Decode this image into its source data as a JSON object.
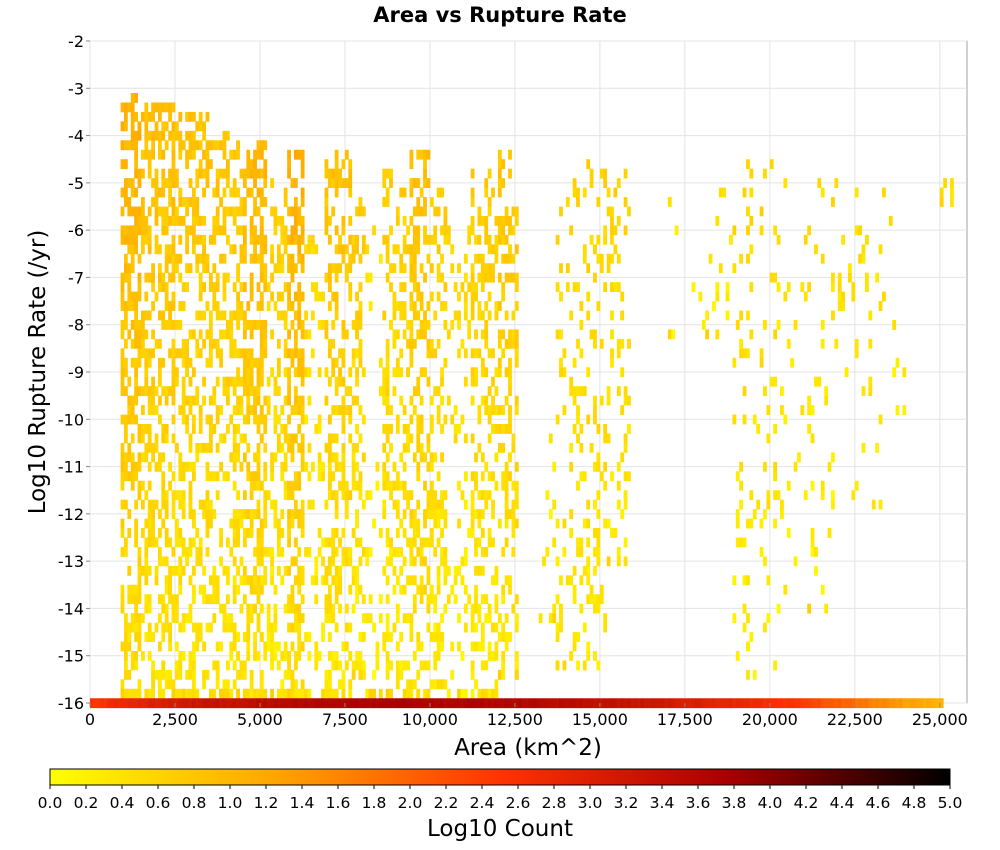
{
  "chart_data": {
    "type": "heatmap",
    "title": "Area vs Rupture Rate",
    "xlabel": "Area (km^2)",
    "ylabel": "Log10 Rupture Rate (/yr)",
    "xlim": [
      0,
      25800
    ],
    "ylim": [
      -16,
      -2
    ],
    "x_ticks": [
      0,
      2500,
      5000,
      7500,
      10000,
      12500,
      15000,
      17500,
      20000,
      22500,
      25000
    ],
    "x_tick_labels": [
      "0",
      "2,500",
      "5,000",
      "7,500",
      "10,000",
      "12,500",
      "15,000",
      "17,500",
      "20,000",
      "22,500",
      "25,000"
    ],
    "y_ticks": [
      -2,
      -3,
      -4,
      -5,
      -6,
      -7,
      -8,
      -9,
      -10,
      -11,
      -12,
      -13,
      -14,
      -15,
      -16
    ],
    "y_tick_labels": [
      "-2",
      "-3",
      "-4",
      "-5",
      "-6",
      "-7",
      "-8",
      "-9",
      "-10",
      "-11",
      "-12",
      "-13",
      "-14",
      "-15",
      "-16"
    ],
    "grid": true,
    "colorbar": {
      "label": "Log10 Count",
      "range": [
        0,
        5
      ],
      "ticks": [
        "0.0",
        "0.2",
        "0.4",
        "0.6",
        "0.8",
        "1.0",
        "1.2",
        "1.4",
        "1.6",
        "1.8",
        "2.0",
        "2.2",
        "2.4",
        "2.6",
        "2.8",
        "3.0",
        "3.2",
        "3.4",
        "3.6",
        "3.8",
        "4.0",
        "4.2",
        "4.4",
        "4.6",
        "4.8",
        "5.0"
      ],
      "colormap": [
        "#ffff00",
        "#ffa500",
        "#ff3300",
        "#aa0000",
        "#000000"
      ]
    },
    "cell_size": {
      "dx": 100,
      "dy": 0.2
    },
    "bottom_row": {
      "y": -16,
      "x_start": 50,
      "x_end": 25050,
      "log10_count_profile": [
        {
          "x": 50,
          "v": 2.5
        },
        {
          "x": 1000,
          "v": 2.8
        },
        {
          "x": 3000,
          "v": 3.2
        },
        {
          "x": 6000,
          "v": 3.6
        },
        {
          "x": 9000,
          "v": 3.7
        },
        {
          "x": 12500,
          "v": 3.6
        },
        {
          "x": 15000,
          "v": 3.4
        },
        {
          "x": 18000,
          "v": 3.0
        },
        {
          "x": 21000,
          "v": 2.4
        },
        {
          "x": 24000,
          "v": 1.3
        },
        {
          "x": 25050,
          "v": 1.0
        }
      ]
    },
    "column_bands": [
      {
        "x0": 900,
        "x1": 1500,
        "ymin": -16,
        "ymax": -3.2,
        "density": 0.55,
        "vtop": 1.1,
        "vbot": 0.4
      },
      {
        "x0": 1500,
        "x1": 2500,
        "ymin": -16,
        "ymax": -3.4,
        "density": 0.45,
        "vtop": 0.9,
        "vbot": 0.35
      },
      {
        "x0": 2500,
        "x1": 3500,
        "ymin": -16,
        "ymax": -3.6,
        "density": 0.42,
        "vtop": 0.85,
        "vbot": 0.3
      },
      {
        "x0": 3500,
        "x1": 4500,
        "ymin": -16,
        "ymax": -4.0,
        "density": 0.4,
        "vtop": 0.8,
        "vbot": 0.3
      },
      {
        "x0": 4500,
        "x1": 5200,
        "ymin": -16,
        "ymax": -4.2,
        "density": 0.5,
        "vtop": 1.0,
        "vbot": 0.35
      },
      {
        "x0": 5200,
        "x1": 5800,
        "ymin": -16,
        "ymax": -4.8,
        "density": 0.3,
        "vtop": 0.7,
        "vbot": 0.25
      },
      {
        "x0": 5800,
        "x1": 6300,
        "ymin": -16,
        "ymax": -4.4,
        "density": 0.55,
        "vtop": 1.1,
        "vbot": 0.4
      },
      {
        "x0": 6300,
        "x1": 6900,
        "ymin": -16,
        "ymax": -6.2,
        "density": 0.18,
        "vtop": 0.5,
        "vbot": 0.2
      },
      {
        "x0": 6900,
        "x1": 7700,
        "ymin": -16,
        "ymax": -4.4,
        "density": 0.4,
        "vtop": 0.85,
        "vbot": 0.3
      },
      {
        "x0": 7700,
        "x1": 8100,
        "ymin": -15.6,
        "ymax": -5.4,
        "density": 0.3,
        "vtop": 0.7,
        "vbot": 0.25
      },
      {
        "x0": 8100,
        "x1": 8600,
        "ymin": -16,
        "ymax": -5.8,
        "density": 0.12,
        "vtop": 0.4,
        "vbot": 0.15
      },
      {
        "x0": 8600,
        "x1": 9400,
        "ymin": -16,
        "ymax": -4.8,
        "density": 0.32,
        "vtop": 0.7,
        "vbot": 0.25
      },
      {
        "x0": 9400,
        "x1": 10000,
        "ymin": -16,
        "ymax": -4.4,
        "density": 0.45,
        "vtop": 0.85,
        "vbot": 0.35
      },
      {
        "x0": 10000,
        "x1": 10500,
        "ymin": -15.8,
        "ymax": -5.0,
        "density": 0.35,
        "vtop": 0.7,
        "vbot": 0.25
      },
      {
        "x0": 10500,
        "x1": 11200,
        "ymin": -16,
        "ymax": -5.8,
        "density": 0.2,
        "vtop": 0.55,
        "vbot": 0.2
      },
      {
        "x0": 11200,
        "x1": 12000,
        "ymin": -16,
        "ymax": -4.8,
        "density": 0.35,
        "vtop": 0.7,
        "vbot": 0.25
      },
      {
        "x0": 12000,
        "x1": 12600,
        "ymin": -15.6,
        "ymax": -4.4,
        "density": 0.38,
        "vtop": 0.8,
        "vbot": 0.3
      },
      {
        "x0": 13200,
        "x1": 13700,
        "ymin": -14.4,
        "ymax": -10.2,
        "density": 0.1,
        "vtop": 0.35,
        "vbot": 0.2
      },
      {
        "x0": 13700,
        "x1": 14600,
        "ymin": -15.4,
        "ymax": -5.0,
        "density": 0.18,
        "vtop": 0.6,
        "vbot": 0.25
      },
      {
        "x0": 14600,
        "x1": 15200,
        "ymin": -15.4,
        "ymax": -4.6,
        "density": 0.22,
        "vtop": 0.65,
        "vbot": 0.25
      },
      {
        "x0": 15200,
        "x1": 15900,
        "ymin": -13.2,
        "ymax": -4.8,
        "density": 0.2,
        "vtop": 0.6,
        "vbot": 0.25
      },
      {
        "x0": 17000,
        "x1": 18900,
        "ymin": -8.4,
        "ymax": -5.0,
        "density": 0.05,
        "vtop": 0.4,
        "vbot": 0.2
      },
      {
        "x0": 18900,
        "x1": 20200,
        "ymin": -15.6,
        "ymax": -4.6,
        "density": 0.12,
        "vtop": 0.55,
        "vbot": 0.25
      },
      {
        "x0": 20200,
        "x1": 21800,
        "ymin": -14.2,
        "ymax": -5.0,
        "density": 0.06,
        "vtop": 0.45,
        "vbot": 0.2
      },
      {
        "x0": 21800,
        "x1": 23600,
        "ymin": -12.0,
        "ymax": -5.0,
        "density": 0.07,
        "vtop": 0.5,
        "vbot": 0.2
      },
      {
        "x0": 23600,
        "x1": 24000,
        "ymin": -11.8,
        "ymax": -8.0,
        "density": 0.03,
        "vtop": 0.3,
        "vbot": 0.2
      },
      {
        "x0": 25000,
        "x1": 25400,
        "ymin": -5.6,
        "ymax": -5.0,
        "density": 0.3,
        "vtop": 0.5,
        "vbot": 0.4
      }
    ]
  }
}
